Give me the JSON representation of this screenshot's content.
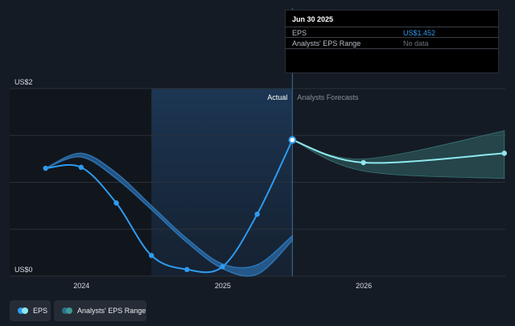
{
  "chart_data": {
    "type": "line",
    "ylabels": {
      "top": "US$2",
      "bottom": "US$0"
    },
    "xticks": [
      "2024",
      "2025",
      "2026"
    ],
    "ylim": [
      0,
      2
    ],
    "section_labels": {
      "actual": "Actual",
      "forecast": "Analysts Forecasts"
    },
    "series": [
      {
        "name": "EPS",
        "color": "#2f9bef",
        "x": [
          "2023-09-30",
          "2023-12-31",
          "2024-03-31",
          "2024-06-30",
          "2024-09-30",
          "2024-12-31",
          "2025-03-31",
          "2025-06-30"
        ],
        "values": [
          1.15,
          1.16,
          0.78,
          0.22,
          0.07,
          0.1,
          0.66,
          1.452
        ]
      },
      {
        "name": "EPS forecast",
        "color": "#8fe8ee",
        "x": [
          "2025-06-30",
          "2025-12-31",
          "2026-12-31"
        ],
        "values": [
          1.452,
          1.21,
          1.31
        ]
      }
    ],
    "analyst_range": {
      "name": "Analysts' EPS Range",
      "x": [
        "2025-06-30",
        "2025-12-31",
        "2026-12-31"
      ],
      "high": [
        1.452,
        1.25,
        1.55
      ],
      "low": [
        1.452,
        1.12,
        1.04
      ]
    },
    "past_estimate_band": {
      "x": [
        "2023-09-30",
        "2023-12-31",
        "2024-03-31",
        "2024-06-30",
        "2024-09-30",
        "2024-12-31",
        "2025-03-31",
        "2025-06-30"
      ],
      "high": [
        1.15,
        1.31,
        1.1,
        0.75,
        0.4,
        0.13,
        0.12,
        0.43
      ],
      "low": [
        1.15,
        1.27,
        1.04,
        0.71,
        0.36,
        0.08,
        0.02,
        0.38
      ]
    },
    "marker_date": "2025-06-30",
    "highlight_start": "2024-06-30",
    "grid": true,
    "tooltip": {
      "title": "Jun 30 2025",
      "rows": [
        {
          "label": "EPS",
          "value": "US$1.452",
          "color": "#2f9bef"
        },
        {
          "label": "Analysts' EPS Range",
          "value": "No data",
          "color": "#6d747d"
        }
      ]
    },
    "legend": [
      {
        "label": "EPS",
        "colors": [
          "#2f9bef",
          "#8fe8ee"
        ]
      },
      {
        "label": "Analysts' EPS Range",
        "colors": [
          "#2a6f8c",
          "#3f9a94"
        ]
      }
    ]
  }
}
